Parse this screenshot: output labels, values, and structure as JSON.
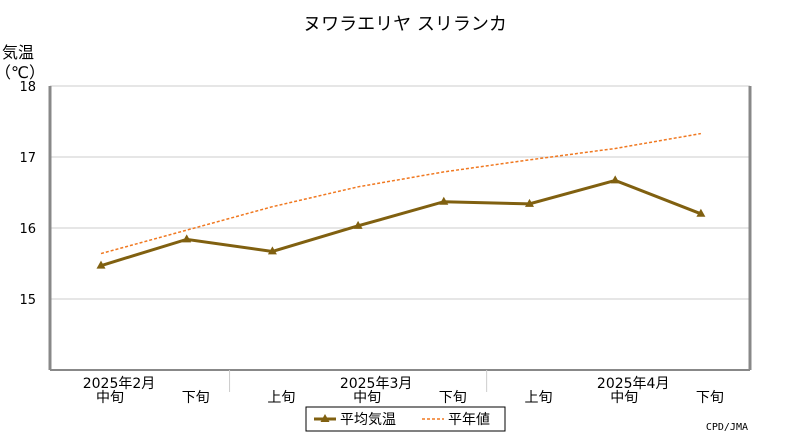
{
  "chart_data": {
    "type": "line",
    "title": "ヌワラエリヤ スリランカ",
    "ylabel": "気温",
    "yunit": "（℃）",
    "ylim": [
      14,
      18
    ],
    "yticks": [
      15,
      16,
      17,
      18
    ],
    "grid": true,
    "categories": [
      {
        "period": "中旬",
        "month": "2025年2月"
      },
      {
        "period": "下旬",
        "month": ""
      },
      {
        "period": "上旬",
        "month": ""
      },
      {
        "period": "中旬",
        "month": "2025年3月"
      },
      {
        "period": "下旬",
        "month": ""
      },
      {
        "period": "上旬",
        "month": ""
      },
      {
        "period": "中旬",
        "month": "2025年4月"
      },
      {
        "period": "下旬",
        "month": ""
      }
    ],
    "series": [
      {
        "name": "平均気温",
        "color": "#806010",
        "style": "solid-marker",
        "values": [
          15.47,
          15.84,
          15.67,
          16.03,
          16.37,
          16.34,
          16.67,
          16.2
        ]
      },
      {
        "name": "平年値",
        "color": "#f07820",
        "style": "dotted",
        "values": [
          15.64,
          15.97,
          16.3,
          16.58,
          16.79,
          16.96,
          17.12,
          17.33
        ]
      }
    ],
    "legend_position": "bottom-center",
    "credit": "CPD/JMA"
  }
}
